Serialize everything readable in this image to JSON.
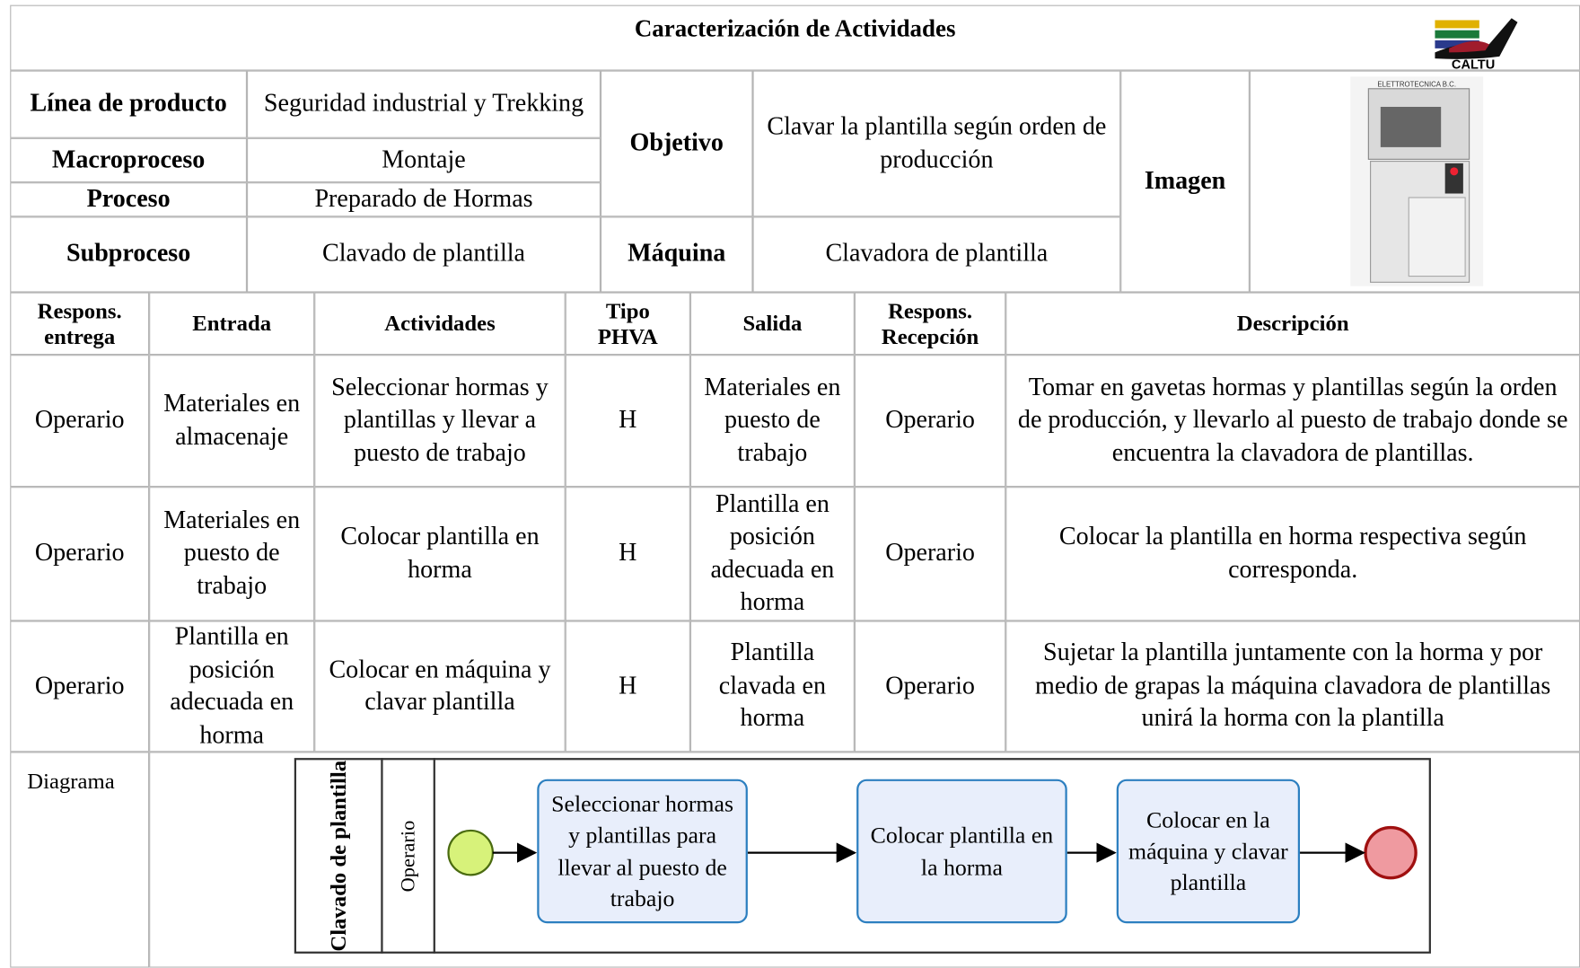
{
  "header": {
    "title": "Caracterización de Actividades",
    "logo_text": "CALTU"
  },
  "info": {
    "linea_label": "Línea de producto",
    "linea": "Seguridad industrial y Trekking",
    "macro_label": "Macroproceso",
    "macro": "Montaje",
    "proceso_label": "Proceso",
    "proceso": "Preparado de Hormas",
    "sub_label": "Subproceso",
    "sub": "Clavado de plantilla",
    "objetivo_label": "Objetivo",
    "objetivo": "Clavar la plantilla según orden de producción",
    "maquina_label": "Máquina",
    "maquina": "Clavadora de plantilla",
    "imagen_label": "Imagen",
    "machine_brand": "ELETTROTECNICA B.C."
  },
  "table": {
    "columns": [
      "Respons. entrega",
      "Entrada",
      "Actividades",
      "Tipo PHVA",
      "Salida",
      "Respons. Recepción",
      "Descripción"
    ],
    "rows": [
      [
        "Operario",
        "Materiales en almacenaje",
        "Seleccionar hormas y plantillas y llevar a puesto de trabajo",
        "H",
        "Materiales en puesto de trabajo",
        "Operario",
        "Tomar en gavetas hormas y plantillas según la orden de producción, y llevarlo al puesto de trabajo donde se encuentra la clavadora de plantillas."
      ],
      [
        "Operario",
        "Materiales en puesto de trabajo",
        "Colocar plantilla en horma",
        "H",
        "Plantilla en posición adecuada en horma",
        "Operario",
        "Colocar la plantilla en horma respectiva según corresponda."
      ],
      [
        "Operario",
        "Plantilla en posición adecuada en horma",
        "Colocar en máquina y clavar plantilla",
        "H",
        "Plantilla clavada en horma",
        "Operario",
        "Sujetar la plantilla juntamente con la horma y por medio de grapas la máquina clavadora de plantillas unirá la horma con la plantilla"
      ]
    ]
  },
  "diagram": {
    "label": "Diagrama",
    "pool": "Clavado de plantilla",
    "lane": "Operario",
    "tasks": [
      "Seleccionar hormas y plantillas para llevar al puesto de trabajo",
      "Colocar plantilla en la horma",
      "Colocar en la máquina y clavar plantilla"
    ]
  }
}
